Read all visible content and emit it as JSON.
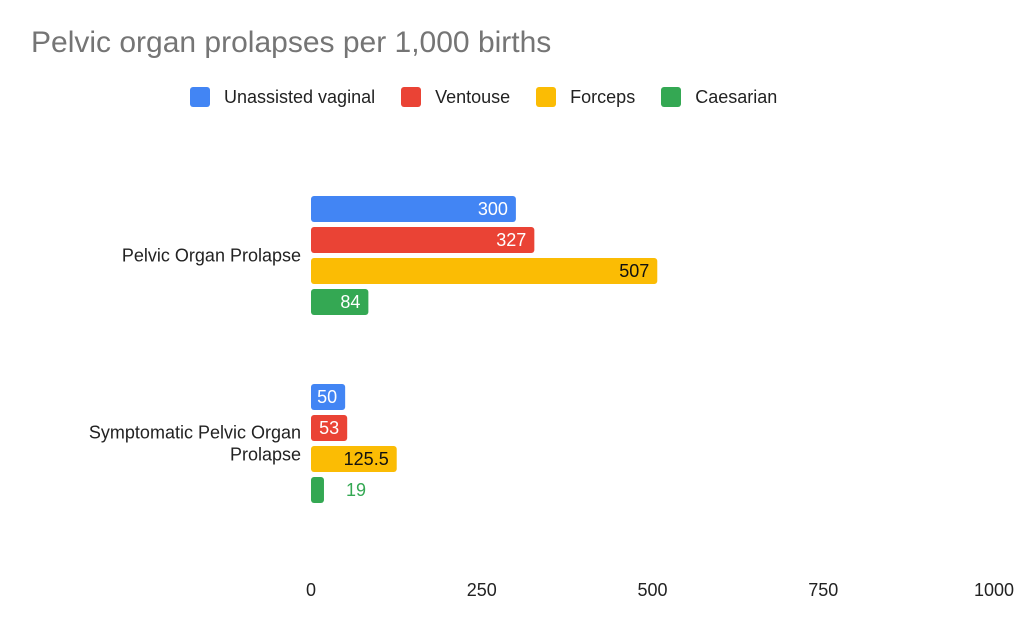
{
  "chart_data": {
    "type": "bar",
    "orientation": "horizontal",
    "title": "Pelvic organ prolapses per 1,000 births",
    "categories": [
      "Pelvic Organ Prolapse",
      "Symptomatic Pelvic Organ Prolapse"
    ],
    "category_label_lines": [
      [
        "Pelvic Organ Prolapse"
      ],
      [
        "Symptomatic Pelvic Organ",
        "Prolapse"
      ]
    ],
    "series": [
      {
        "name": "Unassisted vaginal",
        "color": "#4285F4",
        "values": [
          300,
          50
        ],
        "labels": [
          "300",
          "50"
        ]
      },
      {
        "name": "Ventouse",
        "color": "#EA4335",
        "values": [
          327,
          53
        ],
        "labels": [
          "327",
          "53"
        ]
      },
      {
        "name": "Forceps",
        "color": "#FBBC04",
        "values": [
          507,
          125.5
        ],
        "labels": [
          "507",
          "125.5"
        ]
      },
      {
        "name": "Caesarian",
        "color": "#34A853",
        "values": [
          84,
          19
        ],
        "labels": [
          "84",
          "19"
        ]
      }
    ],
    "xlim": [
      0,
      1000
    ],
    "xticks": [
      0,
      250,
      500,
      750,
      1000
    ],
    "xtick_labels": [
      "0",
      "250",
      "500",
      "750",
      "1000"
    ],
    "legend_position": "top",
    "grid": false,
    "xlabel": "",
    "ylabel": ""
  }
}
